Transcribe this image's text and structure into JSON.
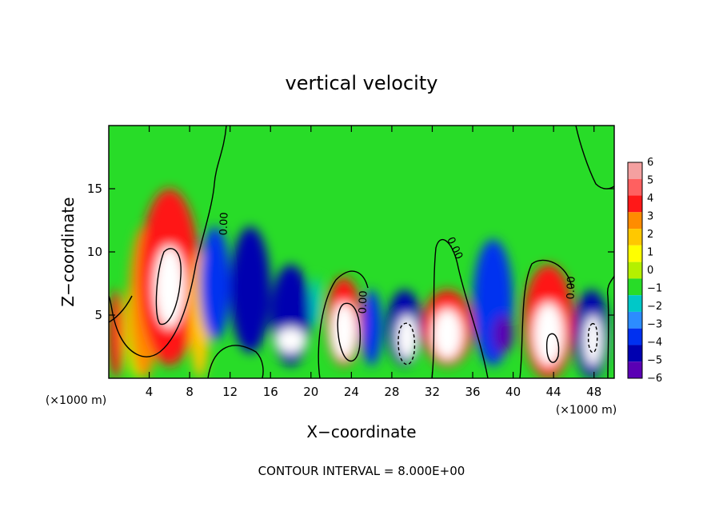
{
  "chart_data": {
    "type": "heatmap",
    "title": "vertical velocity",
    "xlabel": "X−coordinate",
    "ylabel": "Z−coordinate",
    "x_units_left": "(×1000 m)",
    "x_units_right": "(×1000 m)",
    "footer": "CONTOUR INTERVAL = 8.000E+00",
    "xlim": [
      0,
      50
    ],
    "ylim": [
      0,
      20
    ],
    "x_ticks": [
      4,
      8,
      12,
      16,
      20,
      24,
      28,
      32,
      36,
      40,
      44,
      48
    ],
    "y_ticks": [
      5,
      10,
      15
    ],
    "contour_labels": [
      "0.00",
      "0.00",
      "0.00",
      "0.00"
    ],
    "colorbar": {
      "levels": [
        "6",
        "5",
        "4",
        "3",
        "2",
        "1",
        "0",
        "−1",
        "−2",
        "−3",
        "−4",
        "−5",
        "−6"
      ],
      "colors": [
        "#f4a0a0",
        "#ff6060",
        "#ff1818",
        "#ff8c00",
        "#ffc800",
        "#ffff00",
        "#b4f000",
        "#28dc28",
        "#00c8c8",
        "#2c8cff",
        "#0030f0",
        "#0000b0",
        "#5a00b4"
      ]
    },
    "cells": [
      {
        "x": [
          0,
          1.5
        ],
        "z": [
          0,
          7
        ],
        "w": 4
      },
      {
        "x": [
          1.5,
          4
        ],
        "z": [
          0,
          8
        ],
        "w": 0
      },
      {
        "x": [
          2,
          5
        ],
        "z": [
          0,
          12
        ],
        "w": 3
      },
      {
        "x": [
          3,
          9
        ],
        "z": [
          1,
          15
        ],
        "w": 4
      },
      {
        "x": [
          4.5,
          7.5
        ],
        "z": [
          4,
          10.5
        ],
        "w": 6
      },
      {
        "x": [
          8,
          10
        ],
        "z": [
          0,
          10
        ],
        "w": 2
      },
      {
        "x": [
          9,
          12
        ],
        "z": [
          3,
          12
        ],
        "w": -4
      },
      {
        "x": [
          12,
          16
        ],
        "z": [
          2,
          12
        ],
        "w": -5
      },
      {
        "x": [
          16,
          20
        ],
        "z": [
          1,
          9
        ],
        "w": -5
      },
      {
        "x": [
          16.5,
          19.5
        ],
        "z": [
          2,
          4
        ],
        "w": 6
      },
      {
        "x": [
          20,
          21
        ],
        "z": [
          4,
          8
        ],
        "w": -2
      },
      {
        "x": [
          21.5,
          25
        ],
        "z": [
          1,
          8
        ],
        "w": 4
      },
      {
        "x": [
          22,
          24.5
        ],
        "z": [
          1.5,
          6
        ],
        "w": 6
      },
      {
        "x": [
          25,
          27
        ],
        "z": [
          1,
          7
        ],
        "w": -4
      },
      {
        "x": [
          27.5,
          31
        ],
        "z": [
          1,
          7
        ],
        "w": -5
      },
      {
        "x": [
          28.5,
          30.5
        ],
        "z": [
          1.5,
          5
        ],
        "w": 6
      },
      {
        "x": [
          31,
          36
        ],
        "z": [
          1,
          7
        ],
        "w": 4
      },
      {
        "x": [
          32,
          35
        ],
        "z": [
          1.5,
          5.5
        ],
        "w": 6
      },
      {
        "x": [
          36,
          40
        ],
        "z": [
          1,
          11
        ],
        "w": -4
      },
      {
        "x": [
          38,
          40
        ],
        "z": [
          2,
          5
        ],
        "w": -6
      },
      {
        "x": [
          41,
          46
        ],
        "z": [
          0,
          9
        ],
        "w": 4
      },
      {
        "x": [
          42,
          45
        ],
        "z": [
          1,
          6
        ],
        "w": 6
      },
      {
        "x": [
          46,
          49.5
        ],
        "z": [
          0,
          7
        ],
        "w": -5
      },
      {
        "x": [
          47,
          48.8
        ],
        "z": [
          1,
          5
        ],
        "w": 6
      }
    ]
  }
}
